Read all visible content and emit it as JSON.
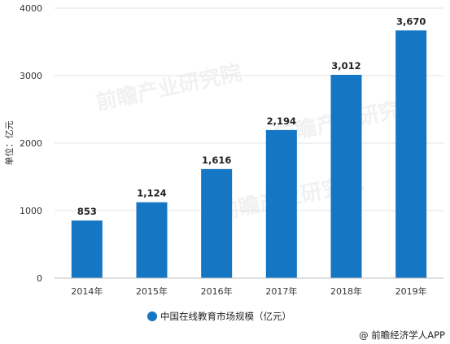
{
  "chart_data": {
    "type": "bar",
    "categories": [
      "2014年",
      "2015年",
      "2016年",
      "2017年",
      "2018年",
      "2019年"
    ],
    "series": [
      {
        "name": "中国在线教育市场规模（亿元）",
        "values": [
          853,
          1124,
          1616,
          2194,
          3012,
          3670
        ],
        "color": "#1576C4"
      }
    ],
    "data_labels": [
      "853",
      "1,124",
      "1,616",
      "2,194",
      "3,012",
      "3,670"
    ],
    "ylabel": "单位：亿元",
    "ylim": [
      0,
      4000
    ],
    "yticks": [
      "0",
      "1000",
      "2000",
      "3000",
      "4000"
    ],
    "ytick_values": [
      0,
      1000,
      2000,
      3000,
      4000
    ],
    "grid": "horizontal",
    "legend_position": "bottom-center"
  },
  "watermark": "前瞻产业研究院",
  "credit": "@ 前瞻经济学人APP"
}
